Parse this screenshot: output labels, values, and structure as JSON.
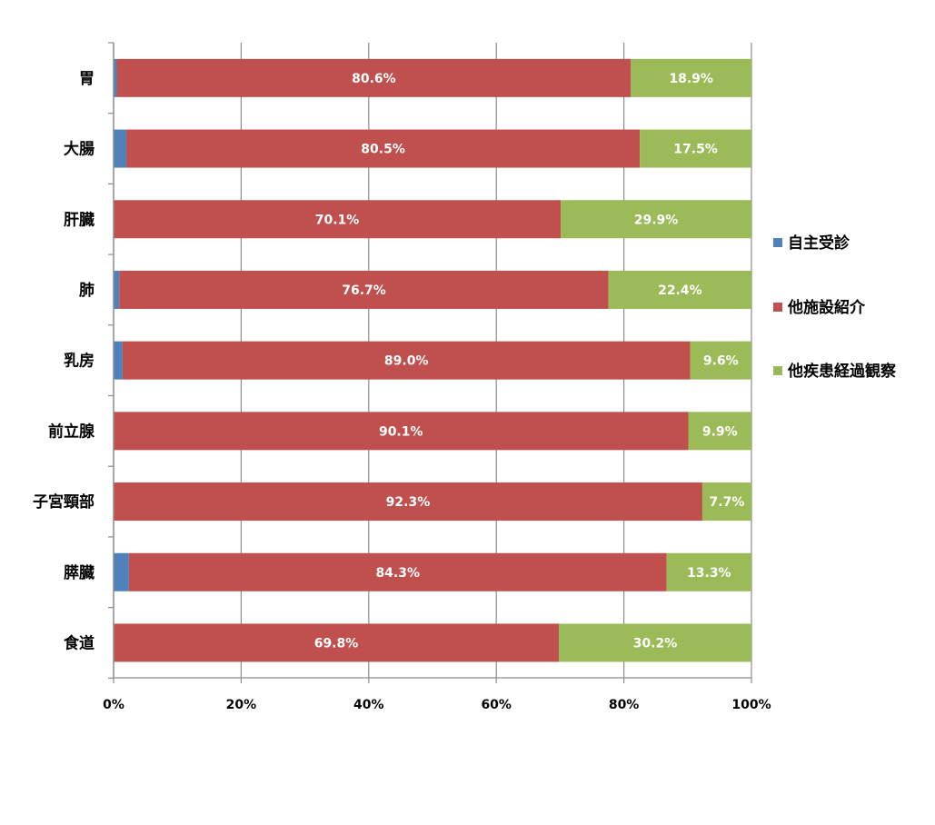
{
  "chart_data": {
    "type": "bar",
    "orientation": "horizontal",
    "stacked": "percent",
    "title": "",
    "xlabel": "",
    "ylabel": "",
    "xlim": [
      0,
      100
    ],
    "x_ticks": [
      "0%",
      "20%",
      "40%",
      "60%",
      "80%",
      "100%"
    ],
    "grid": true,
    "legend_position": "right",
    "categories": [
      "胃",
      "大腸",
      "肝臓",
      "肺",
      "乳房",
      "前立腺",
      "子宮頸部",
      "膵臓",
      "食道"
    ],
    "series": [
      {
        "name": "自主受診",
        "color": "#4f81bd",
        "values": [
          0.5,
          2.0,
          0.0,
          0.9,
          1.4,
          0.0,
          0.0,
          2.4,
          0.0
        ],
        "labels": [
          "",
          "",
          "",
          "",
          "",
          "",
          "",
          "",
          ""
        ]
      },
      {
        "name": "他施設紹介",
        "color": "#c0504d",
        "values": [
          80.6,
          80.5,
          70.1,
          76.7,
          89.0,
          90.1,
          92.3,
          84.3,
          69.8
        ],
        "labels": [
          "80.6%",
          "80.5%",
          "70.1%",
          "76.7%",
          "89.0%",
          "90.1%",
          "92.3%",
          "84.3%",
          "69.8%"
        ]
      },
      {
        "name": "他疾患経過観察",
        "color": "#9bbb59",
        "values": [
          18.9,
          17.5,
          29.9,
          22.4,
          9.6,
          9.9,
          7.7,
          13.3,
          30.2
        ],
        "labels": [
          "18.9%",
          "17.5%",
          "29.9%",
          "22.4%",
          "9.6%",
          "9.9%",
          "7.7%",
          "13.3%",
          "30.2%"
        ]
      }
    ]
  }
}
